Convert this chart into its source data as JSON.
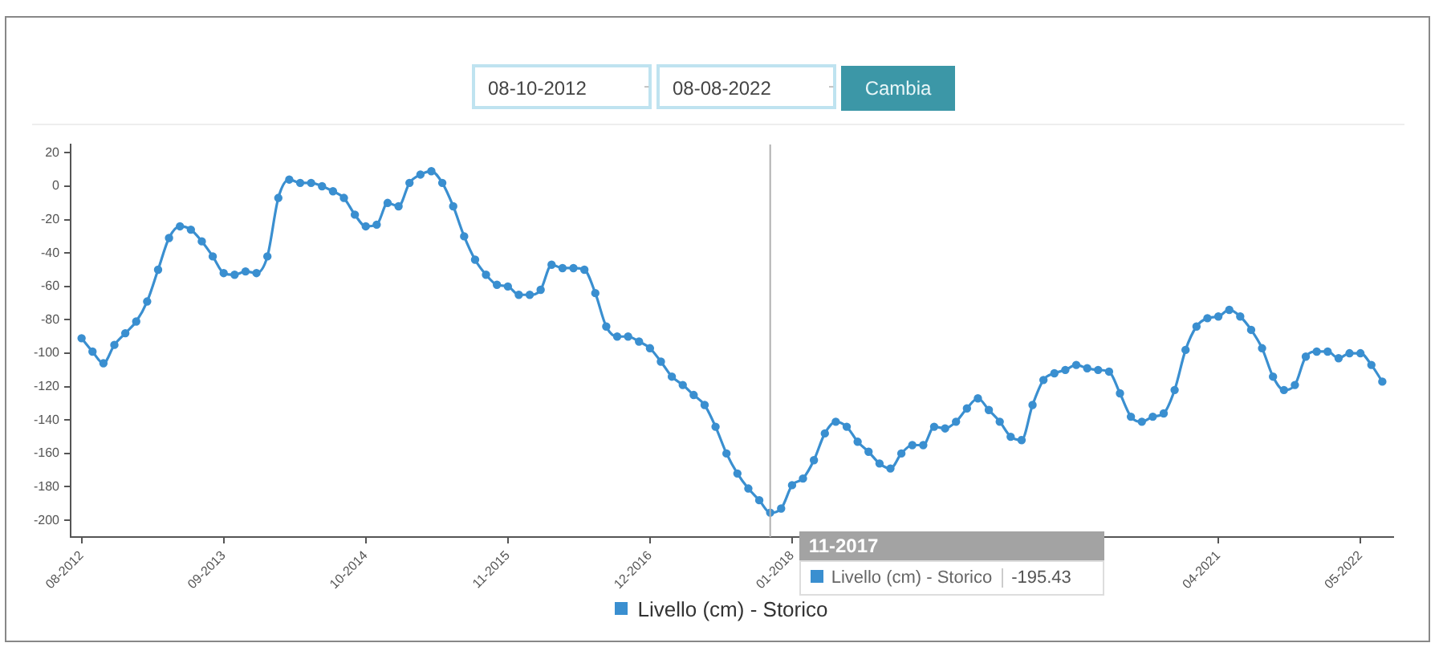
{
  "chart_data": {
    "type": "line",
    "x": [
      "2012-08",
      "2012-09",
      "2012-10",
      "2012-11",
      "2012-12",
      "2013-01",
      "2013-02",
      "2013-03",
      "2013-04",
      "2013-05",
      "2013-06",
      "2013-07",
      "2013-08",
      "2013-09",
      "2013-10",
      "2013-11",
      "2013-12",
      "2014-01",
      "2014-02",
      "2014-03",
      "2014-04",
      "2014-05",
      "2014-06",
      "2014-07",
      "2014-08",
      "2014-09",
      "2014-10",
      "2014-11",
      "2014-12",
      "2015-01",
      "2015-02",
      "2015-03",
      "2015-04",
      "2015-05",
      "2015-06",
      "2015-07",
      "2015-08",
      "2015-09",
      "2015-10",
      "2015-11",
      "2015-12",
      "2016-01",
      "2016-02",
      "2016-03",
      "2016-04",
      "2016-05",
      "2016-06",
      "2016-07",
      "2016-08",
      "2016-09",
      "2016-10",
      "2016-11",
      "2016-12",
      "2017-01",
      "2017-02",
      "2017-03",
      "2017-04",
      "2017-05",
      "2017-06",
      "2017-07",
      "2017-08",
      "2017-09",
      "2017-10",
      "2017-11",
      "2017-12",
      "2018-01",
      "2018-02",
      "2018-03",
      "2018-04",
      "2018-05",
      "2018-06",
      "2018-07",
      "2018-08",
      "2018-09",
      "2018-10",
      "2018-11",
      "2018-12",
      "2019-01",
      "2019-02",
      "2019-03",
      "2019-04",
      "2019-05",
      "2019-06",
      "2019-07",
      "2019-08",
      "2019-09",
      "2019-10",
      "2019-11",
      "2019-12",
      "2020-01",
      "2020-02",
      "2020-03",
      "2020-04",
      "2020-05",
      "2020-06",
      "2020-07",
      "2020-08",
      "2020-09",
      "2020-10",
      "2020-11",
      "2020-12",
      "2021-01",
      "2021-02",
      "2021-03",
      "2021-04",
      "2021-05",
      "2021-06",
      "2021-07",
      "2021-08",
      "2021-09",
      "2021-10",
      "2021-11",
      "2021-12",
      "2022-01",
      "2022-02",
      "2022-03",
      "2022-04",
      "2022-05",
      "2022-06",
      "2022-07"
    ],
    "series": [
      {
        "name": "Livello (cm) - Storico",
        "color": "#3a8fd0",
        "values": [
          -91,
          -99,
          -106,
          -95,
          -88,
          -81,
          -69,
          -50,
          -31,
          -24,
          -26,
          -33,
          -42,
          -52,
          -53,
          -51,
          -52,
          -42,
          -7,
          4,
          2,
          2,
          0,
          -3,
          -7,
          -17,
          -24,
          -23,
          -10,
          -12,
          2,
          7,
          9,
          2,
          -12,
          -30,
          -44,
          -53,
          -59,
          -60,
          -65,
          -65,
          -62,
          -47,
          -49,
          -49,
          -50,
          -64,
          -84,
          -90,
          -90,
          -93,
          -97,
          -105,
          -114,
          -119,
          -125,
          -131,
          -144,
          -160,
          -172,
          -181,
          -188,
          -195.43,
          -193,
          -179,
          -175,
          -164,
          -148,
          -141,
          -144,
          -153,
          -159,
          -166,
          -169,
          -160,
          -155,
          -155,
          -144,
          -145,
          -141,
          -133,
          -127,
          -134,
          -141,
          -150,
          -152,
          -131,
          -116,
          -112,
          -110,
          -107,
          -109,
          -110,
          -111,
          -124,
          -138,
          -141,
          -138,
          -136,
          -122,
          -98,
          -84,
          -79,
          -78,
          -74,
          -78,
          -86,
          -97,
          -114,
          -122,
          -119,
          -102,
          -99,
          -99,
          -103,
          -100,
          -100,
          -107,
          -117
        ]
      }
    ],
    "xlim": [
      "2012-07",
      "2022-08"
    ],
    "xticks": [
      {
        "value": "2012-08",
        "label": "08-2012"
      },
      {
        "value": "2013-09",
        "label": "09-2013"
      },
      {
        "value": "2014-10",
        "label": "10-2014"
      },
      {
        "value": "2015-11",
        "label": "11-2015"
      },
      {
        "value": "2016-12",
        "label": "12-2016"
      },
      {
        "value": "2018-01",
        "label": "01-2018"
      },
      {
        "value": "2019-02",
        "label": null
      },
      {
        "value": "2020-03",
        "label": null
      },
      {
        "value": "2021-04",
        "label": "04-2021"
      },
      {
        "value": "2022-05",
        "label": "05-2022"
      }
    ],
    "ylim": [
      -210,
      25
    ],
    "yticks": [
      20,
      0,
      -20,
      -40,
      -60,
      -80,
      -100,
      -120,
      -140,
      -160,
      -180,
      -200
    ],
    "grid": false,
    "legend": "bottom",
    "marker": "circle",
    "ref_lines": [
      {
        "axis": "x",
        "value": "2017-11",
        "color": "#b0b0b0"
      }
    ],
    "annotations": [
      "08-10-2012",
      "-",
      "08-08-2022",
      "-",
      "Cambia",
      "11-2017",
      "-195.43"
    ]
  }
}
